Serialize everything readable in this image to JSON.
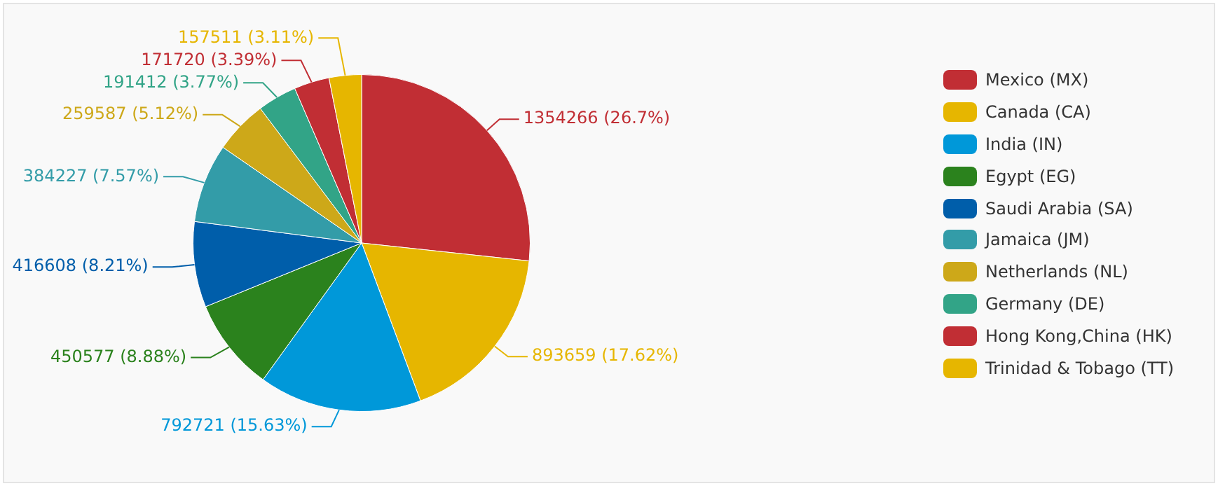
{
  "chart_data": {
    "type": "pie",
    "legend": "right",
    "categories": [
      "Mexico (MX)",
      "Canada (CA)",
      "India (IN)",
      "Egypt (EG)",
      "Saudi Arabia (SA)",
      "Jamaica (JM)",
      "Netherlands (NL)",
      "Germany (DE)",
      "Hong Kong,China (HK)",
      "Trinidad & Tobago (TT)"
    ],
    "values": [
      1354266,
      893659,
      792721,
      450577,
      416608,
      384227,
      259587,
      191412,
      171720,
      157511
    ],
    "value_labels": [
      "1354266 (26.7%)",
      "893659 (17.62%)",
      "792721 (15.63%)",
      "450577 (8.88%)",
      "416608 (8.21%)",
      "384227 (7.57%)",
      "259587 (5.12%)",
      "191412 (3.77%)",
      "171720 (3.39%)",
      "157511 (3.11%)"
    ],
    "colors": [
      "#c12e34",
      "#e6b600",
      "#0098d9",
      "#2b821d",
      "#005eaa",
      "#339ca8",
      "#cda819",
      "#32a487",
      "#c12e34",
      "#e6b600"
    ]
  }
}
